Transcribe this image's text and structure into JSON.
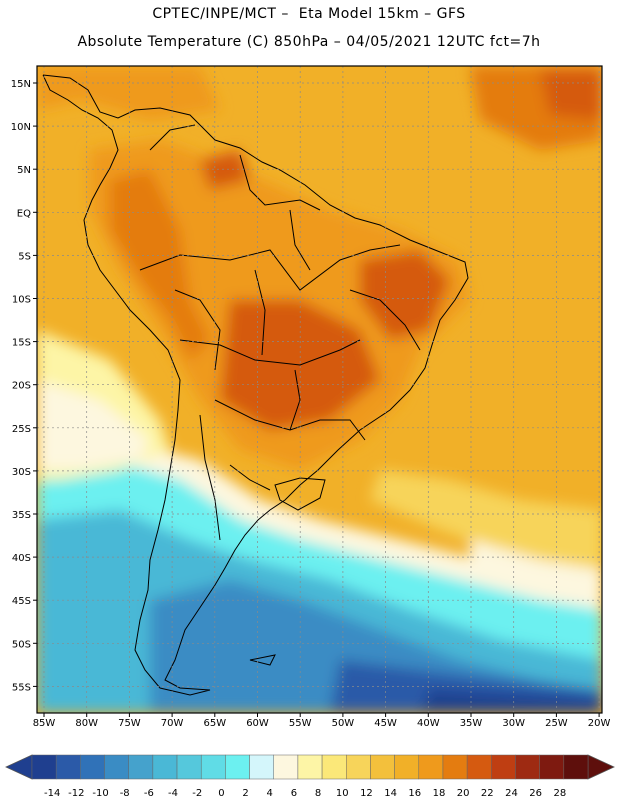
{
  "header": {
    "line1": "CPTEC/INPE/MCT –  Eta Model 15km – GFS",
    "line2": "Absolute Temperature (C) 850hPa – 04/05/2021 12UTC fct=7h"
  },
  "map": {
    "lat_labels": [
      "15N",
      "10N",
      "5N",
      "EQ",
      "5S",
      "10S",
      "15S",
      "20S",
      "25S",
      "30S",
      "35S",
      "40S",
      "45S",
      "50S",
      "55S"
    ],
    "lon_labels": [
      "85W",
      "80W",
      "75W",
      "70W",
      "65W",
      "60W",
      "55W",
      "50W",
      "45W",
      "40W",
      "35W",
      "30W",
      "25W",
      "20W"
    ]
  },
  "colorbar": {
    "labels": [
      "-14",
      "-12",
      "-10",
      "-8",
      "-6",
      "-4",
      "-2",
      "0",
      "2",
      "4",
      "6",
      "8",
      "10",
      "12",
      "14",
      "16",
      "18",
      "20",
      "22",
      "24",
      "26",
      "28"
    ],
    "colors": [
      "#1f3f8f",
      "#2b5aa8",
      "#3072b8",
      "#3a8cc4",
      "#45a2cc",
      "#4ab8d6",
      "#55c8dc",
      "#60dce6",
      "#6cf0f0",
      "#d4f6fb",
      "#fdf7df",
      "#fdf5a6",
      "#fbe879",
      "#f7d45a",
      "#f3c03c",
      "#f1b028",
      "#ef9a1c",
      "#e47c10",
      "#d55a10",
      "#bf3e12",
      "#9e2a12",
      "#7e1a10",
      "#5e0f0c"
    ]
  }
}
